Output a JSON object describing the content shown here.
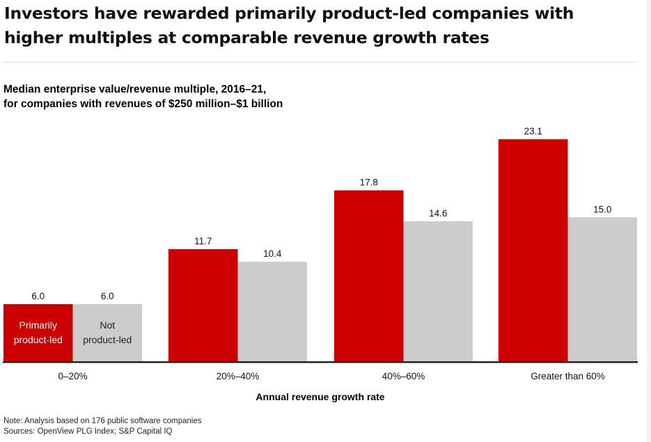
{
  "title": "Investors have rewarded primarily product-led companies with higher multiples at comparable revenue growth rates",
  "chart_data": {
    "type": "bar",
    "title": "Median enterprise value/revenue multiple, 2016–21,",
    "subtitle": "for companies with revenues of $250 million–$1 billion",
    "xlabel": "Annual revenue growth rate",
    "ylabel": "",
    "categories": [
      "0–20%",
      "20%–40%",
      "40%–60%",
      "Greater than 60%"
    ],
    "series": [
      {
        "name": "Primarily product-led",
        "label_lines": [
          "Primarily",
          "product-led"
        ],
        "color": "#cc0000",
        "values": [
          6.0,
          11.7,
          17.8,
          23.1
        ]
      },
      {
        "name": "Not product-led",
        "label_lines": [
          "Not",
          "product-led"
        ],
        "color": "#cccccc",
        "values": [
          6.0,
          10.4,
          14.6,
          15.0
        ]
      }
    ],
    "ylim": [
      0,
      25
    ],
    "grid": false,
    "legend": "inside-first-bars"
  },
  "note": "Note: Analysis based on 176 public software companies",
  "sources": "Sources: OpenView PLG Index; S&P Capital IQ"
}
